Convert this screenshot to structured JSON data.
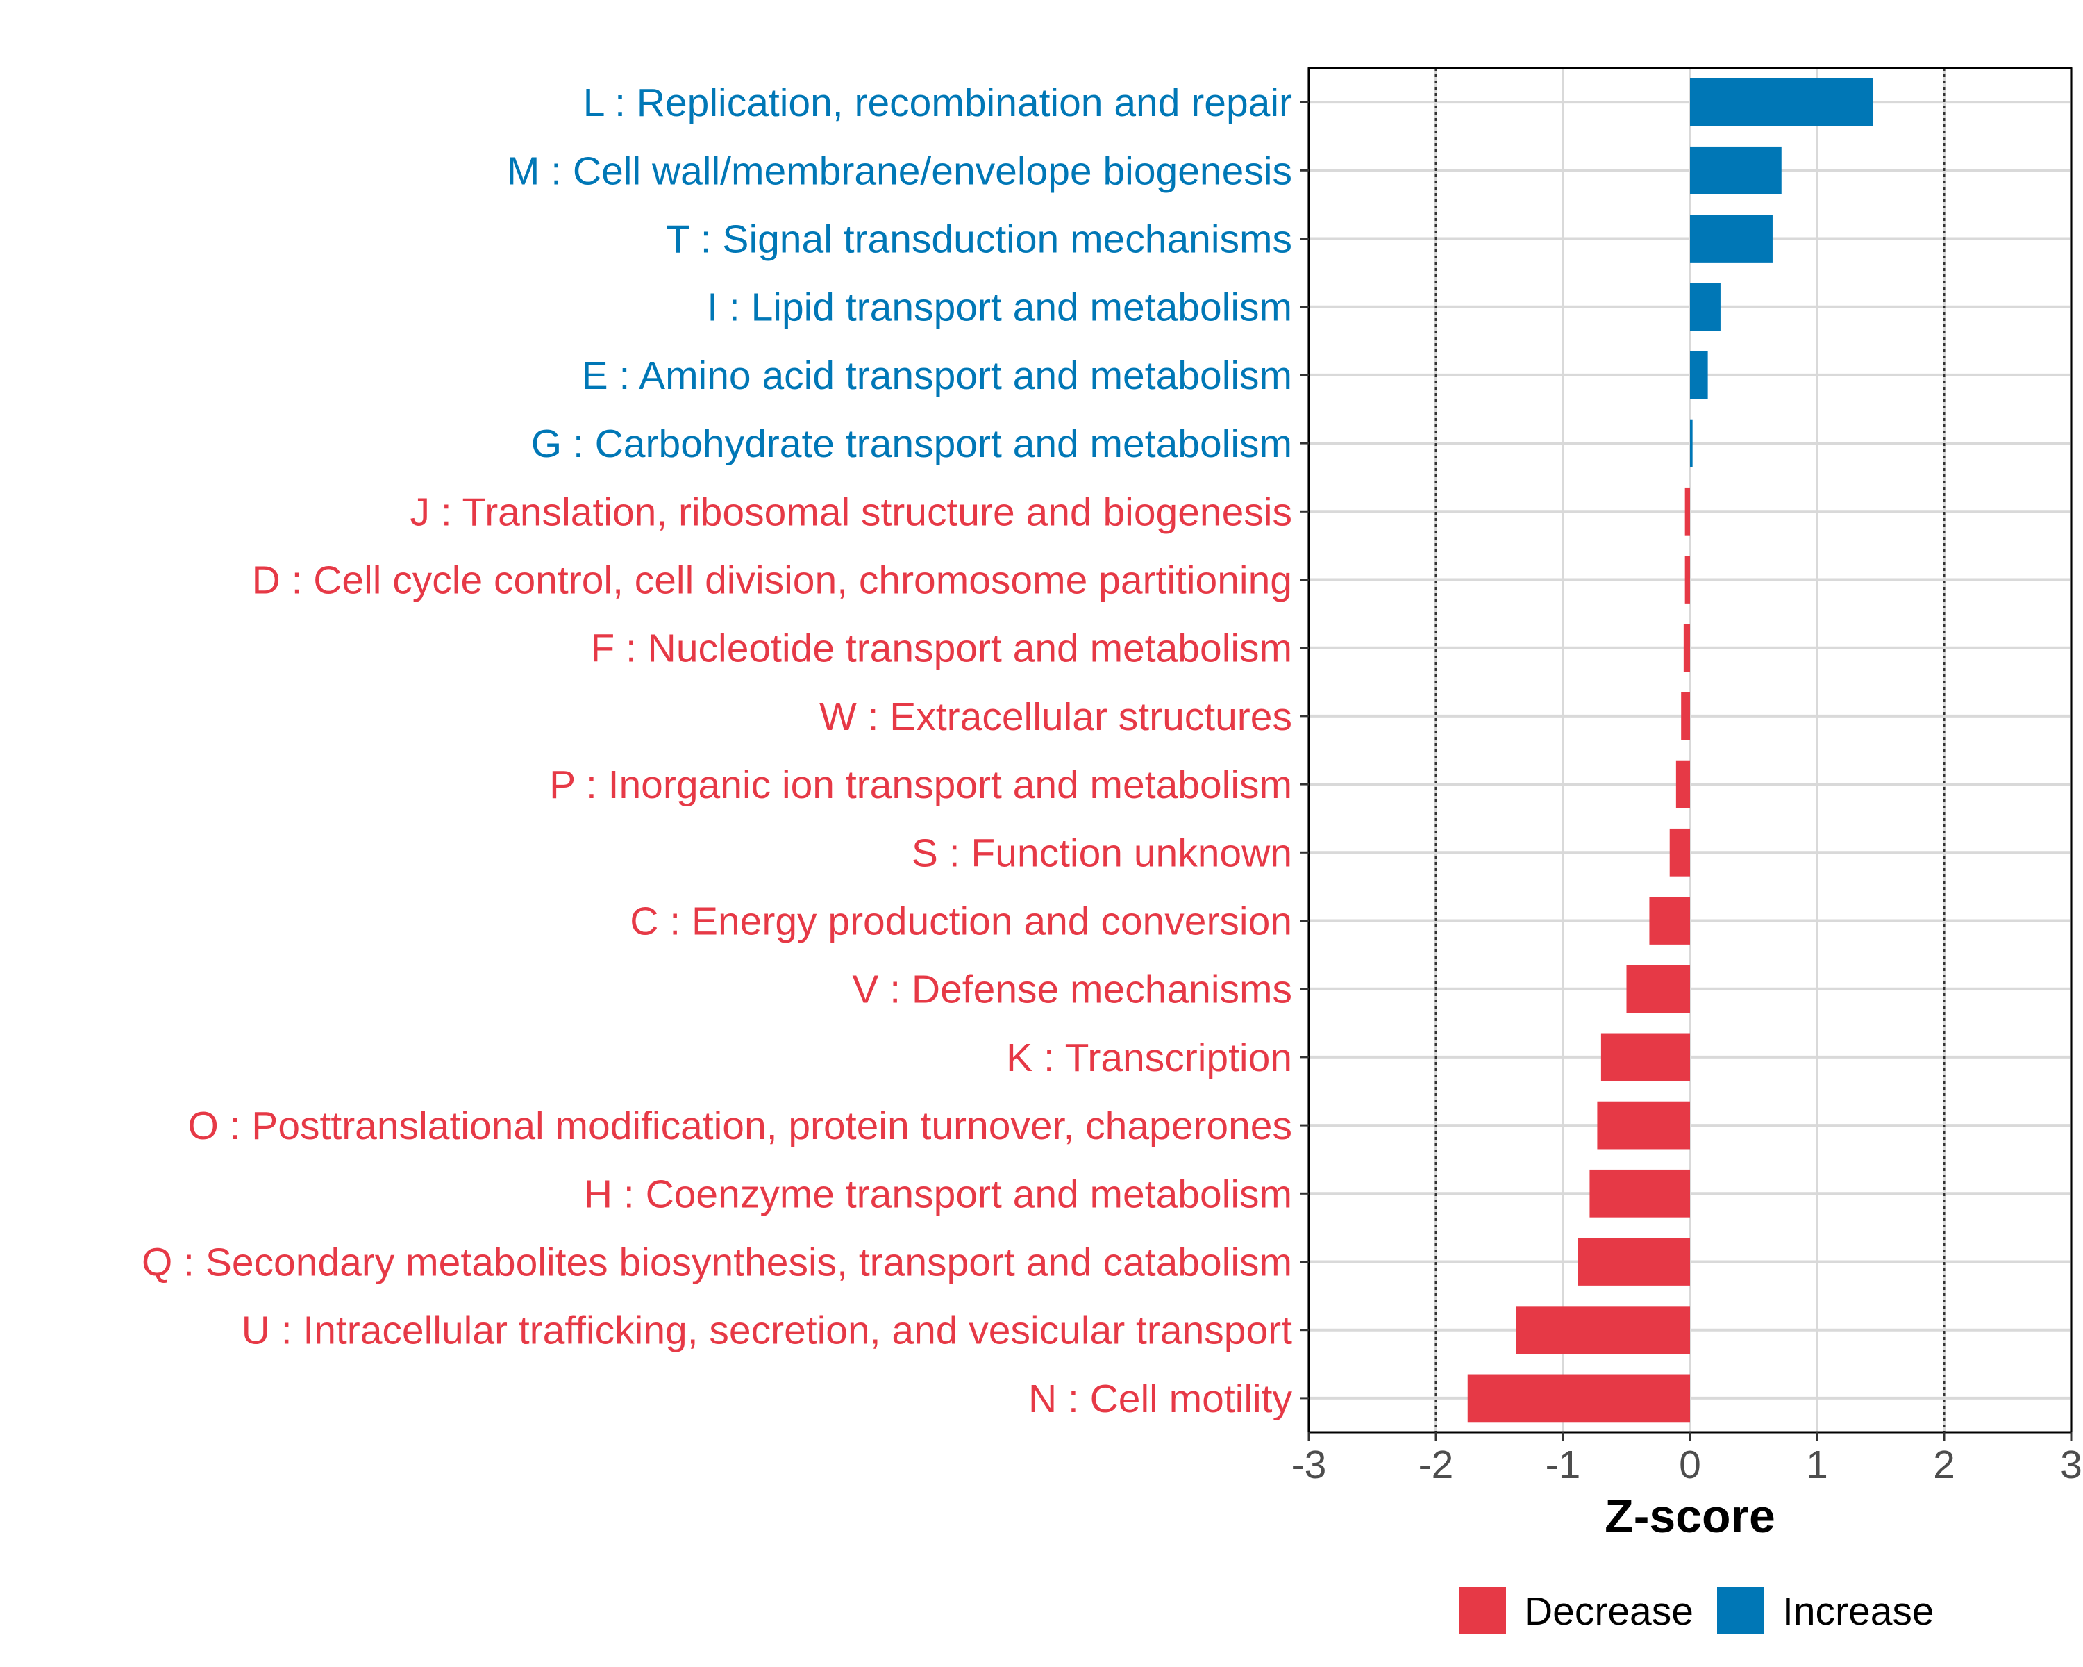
{
  "chart_data": {
    "type": "bar",
    "orientation": "horizontal",
    "xlabel": "Z-score",
    "ylabel": "",
    "xlim": [
      -3,
      3
    ],
    "xticks": [
      -3,
      -2,
      -1,
      0,
      1,
      2,
      3
    ],
    "xtick_labels": [
      "-3",
      "-2",
      "-1",
      "0",
      "1",
      "2",
      "3"
    ],
    "reference_lines": [
      -2,
      2
    ],
    "grid": true,
    "categories": [
      "L : Replication, recombination and repair",
      "M : Cell wall/membrane/envelope biogenesis",
      "T : Signal transduction mechanisms",
      "I : Lipid transport and metabolism",
      "E : Amino acid transport and metabolism",
      "G : Carbohydrate transport and metabolism",
      "J : Translation, ribosomal structure and biogenesis",
      "D : Cell cycle control, cell division, chromosome partitioning",
      "F : Nucleotide transport and metabolism",
      "W : Extracellular structures",
      "P : Inorganic ion transport and metabolism",
      "S : Function unknown",
      "C : Energy production and conversion",
      "V : Defense mechanisms",
      "K : Transcription",
      "O : Posttranslational modification, protein turnover, chaperones",
      "H : Coenzyme transport and metabolism",
      "Q : Secondary metabolites biosynthesis, transport and catabolism",
      "U : Intracellular trafficking, secretion, and vesicular transport",
      "N : Cell motility"
    ],
    "values": [
      1.44,
      0.72,
      0.65,
      0.24,
      0.14,
      0.02,
      -0.04,
      -0.04,
      -0.05,
      -0.07,
      -0.11,
      -0.16,
      -0.32,
      -0.5,
      -0.7,
      -0.73,
      -0.79,
      -0.88,
      -1.37,
      -1.75
    ],
    "groups": [
      "Increase",
      "Increase",
      "Increase",
      "Increase",
      "Increase",
      "Increase",
      "Decrease",
      "Decrease",
      "Decrease",
      "Decrease",
      "Decrease",
      "Decrease",
      "Decrease",
      "Decrease",
      "Decrease",
      "Decrease",
      "Decrease",
      "Decrease",
      "Decrease",
      "Decrease"
    ],
    "legend": {
      "position": "bottom",
      "entries": [
        {
          "label": "Decrease",
          "color": "#E63946"
        },
        {
          "label": "Increase",
          "color": "#0077B6"
        }
      ]
    },
    "colors": {
      "Decrease": "#E63946",
      "Increase": "#0077B6"
    }
  }
}
